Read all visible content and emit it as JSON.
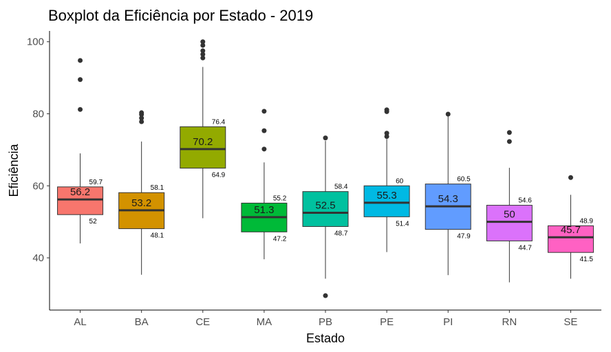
{
  "chart_data": {
    "type": "boxplot",
    "title": "Boxplot da Eficiência por Estado - 2019",
    "xlabel": "Estado",
    "ylabel": "Eficiência",
    "ylim": [
      25.5,
      103
    ],
    "yticks": [
      40,
      60,
      80,
      100
    ],
    "categories": [
      "AL",
      "BA",
      "CE",
      "MA",
      "PB",
      "PE",
      "PI",
      "RN",
      "SE"
    ],
    "colors": [
      "#F8766D",
      "#D39200",
      "#93AA00",
      "#00BA38",
      "#00C19F",
      "#00B9E3",
      "#619CFF",
      "#DB72FB",
      "#FF61C3"
    ],
    "boxes": [
      {
        "label": "AL",
        "whisker_low": 44.0,
        "q1": 52.0,
        "median": 56.2,
        "q3": 59.7,
        "whisker_high": 69.0,
        "median_label": "56.2",
        "q1_label": "52",
        "q3_label": "59.7",
        "outliers": [
          81.2,
          89.5,
          94.8
        ]
      },
      {
        "label": "BA",
        "whisker_low": 35.3,
        "q1": 48.1,
        "median": 53.2,
        "q3": 58.1,
        "whisker_high": 72.3,
        "median_label": "53.2",
        "q1_label": "48.1",
        "q3_label": "58.1",
        "outliers": [
          77.8,
          78.8,
          79.8,
          80.3
        ]
      },
      {
        "label": "CE",
        "whisker_low": 51.0,
        "q1": 64.9,
        "median": 70.2,
        "q3": 76.4,
        "whisker_high": 93.0,
        "median_label": "70.2",
        "q1_label": "64.9",
        "q3_label": "76.4",
        "outliers": [
          95.5,
          96.5,
          97.5,
          99.0,
          100.0
        ]
      },
      {
        "label": "MA",
        "whisker_low": 39.6,
        "q1": 47.2,
        "median": 51.3,
        "q3": 55.2,
        "whisker_high": 66.5,
        "median_label": "51.3",
        "q1_label": "47.2",
        "q3_label": "55.2",
        "outliers": [
          70.2,
          75.3,
          80.7
        ]
      },
      {
        "label": "PB",
        "whisker_low": 34.2,
        "q1": 48.7,
        "median": 52.5,
        "q3": 58.4,
        "whisker_high": 72.5,
        "median_label": "52.5",
        "q1_label": "48.7",
        "q3_label": "58.4",
        "outliers": [
          29.5,
          73.3
        ]
      },
      {
        "label": "PE",
        "whisker_low": 41.6,
        "q1": 51.4,
        "median": 55.3,
        "q3": 60.0,
        "whisker_high": 73.0,
        "median_label": "55.3",
        "q1_label": "51.4",
        "q3_label": "60",
        "outliers": [
          73.7,
          74.6,
          80.6,
          81.1
        ]
      },
      {
        "label": "PI",
        "whisker_low": 35.2,
        "q1": 47.9,
        "median": 54.3,
        "q3": 60.5,
        "whisker_high": 79.9,
        "median_label": "54.3",
        "q1_label": "47.9",
        "q3_label": "60.5",
        "outliers": [
          79.9
        ]
      },
      {
        "label": "RN",
        "whisker_low": 33.2,
        "q1": 44.7,
        "median": 50.0,
        "q3": 54.6,
        "whisker_high": 65.0,
        "median_label": "50",
        "q1_label": "44.7",
        "q3_label": "54.6",
        "outliers": [
          72.3,
          74.8
        ]
      },
      {
        "label": "SE",
        "whisker_low": 34.2,
        "q1": 41.5,
        "median": 45.7,
        "q3": 48.9,
        "whisker_high": 57.5,
        "median_label": "45.7",
        "q1_label": "41.5",
        "q3_label": "48.9",
        "outliers": [
          62.3
        ]
      }
    ]
  }
}
